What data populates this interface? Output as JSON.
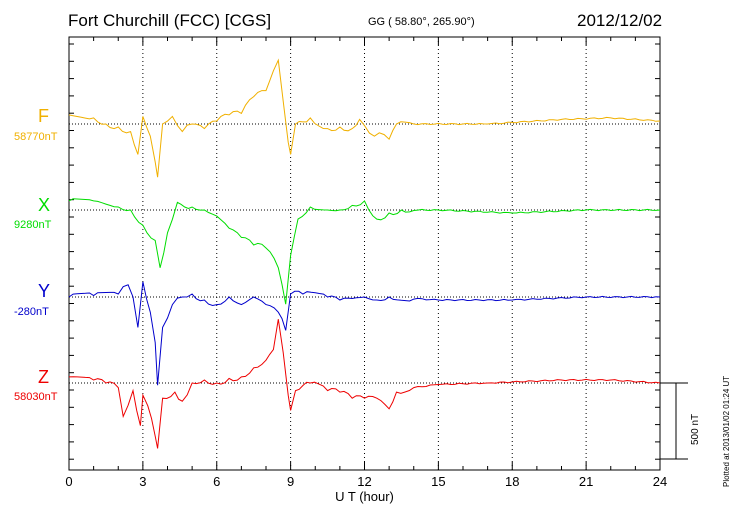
{
  "header": {
    "station": "Fort Churchill (FCC)  [CGS]",
    "coords": "GG ( 58.80°, 265.90°)",
    "date": "2012/12/02"
  },
  "footer_note": "Plotted at 2013/01/02 01:24  UT",
  "chart_data": {
    "type": "line",
    "title": "Fort Churchill (FCC)  [CGS]",
    "xlabel": "U T (hour)",
    "xlim": [
      0,
      24
    ],
    "xticks": [
      0,
      3,
      6,
      9,
      12,
      15,
      18,
      21,
      24
    ],
    "x_tick_labels": [
      "0",
      "3",
      "6",
      "9",
      "12",
      "15",
      "18",
      "21",
      "24"
    ],
    "grid": "vertical dotted every 3 h",
    "scale_bar": {
      "label": "500 nT",
      "value": 500
    },
    "colors": {
      "F": "#f0b000",
      "X": "#00dd00",
      "Y": "#0000cc",
      "Z": "#ee0000"
    },
    "series": [
      {
        "name": "F",
        "baseline_label": "58770nT",
        "baseline": 58770,
        "points": [
          [
            0,
            60
          ],
          [
            1,
            40
          ],
          [
            1.5,
            0
          ],
          [
            2,
            -20
          ],
          [
            2.5,
            -50
          ],
          [
            2.8,
            -200
          ],
          [
            3,
            50
          ],
          [
            3.3,
            -80
          ],
          [
            3.5,
            -250
          ],
          [
            3.6,
            -350
          ],
          [
            3.8,
            0
          ],
          [
            4.2,
            50
          ],
          [
            4.6,
            -50
          ],
          [
            5,
            0
          ],
          [
            5.5,
            -30
          ],
          [
            6,
            20
          ],
          [
            6.5,
            60
          ],
          [
            7,
            70
          ],
          [
            7.5,
            180
          ],
          [
            8,
            220
          ],
          [
            8.3,
            350
          ],
          [
            8.5,
            420
          ],
          [
            8.7,
            150
          ],
          [
            8.9,
            -120
          ],
          [
            9,
            -200
          ],
          [
            9.2,
            0
          ],
          [
            9.8,
            40
          ],
          [
            10.5,
            -30
          ],
          [
            11,
            -20
          ],
          [
            11.5,
            -30
          ],
          [
            11.8,
            30
          ],
          [
            12,
            -10
          ],
          [
            12.4,
            -80
          ],
          [
            12.8,
            -70
          ],
          [
            13,
            -100
          ],
          [
            13.3,
            0
          ],
          [
            14,
            0
          ],
          [
            17,
            0
          ],
          [
            20,
            30
          ],
          [
            22,
            40
          ],
          [
            24,
            20
          ]
        ]
      },
      {
        "name": "X",
        "baseline_label": "9280nT",
        "baseline": 9280,
        "points": [
          [
            0,
            60
          ],
          [
            1,
            60
          ],
          [
            2,
            20
          ],
          [
            2.5,
            0
          ],
          [
            3,
            -100
          ],
          [
            3.5,
            -200
          ],
          [
            3.7,
            -380
          ],
          [
            4,
            -150
          ],
          [
            4.4,
            50
          ],
          [
            5,
            20
          ],
          [
            5.5,
            0
          ],
          [
            6,
            -40
          ],
          [
            6.5,
            -120
          ],
          [
            7,
            -180
          ],
          [
            7.5,
            -230
          ],
          [
            8,
            -250
          ],
          [
            8.5,
            -380
          ],
          [
            8.8,
            -620
          ],
          [
            9,
            -300
          ],
          [
            9.3,
            -60
          ],
          [
            9.8,
            20
          ],
          [
            10.5,
            0
          ],
          [
            11,
            0
          ],
          [
            11.5,
            30
          ],
          [
            12,
            60
          ],
          [
            12.5,
            -60
          ],
          [
            13,
            -20
          ],
          [
            13.5,
            0
          ],
          [
            15,
            0
          ],
          [
            18,
            -20
          ],
          [
            21,
            0
          ],
          [
            24,
            0
          ]
        ]
      },
      {
        "name": "Y",
        "baseline_label": "-280nT",
        "baseline": -280,
        "points": [
          [
            0,
            0
          ],
          [
            1,
            10
          ],
          [
            2,
            20
          ],
          [
            2.4,
            80
          ],
          [
            2.6,
            0
          ],
          [
            2.8,
            -200
          ],
          [
            3,
            100
          ],
          [
            3.3,
            -100
          ],
          [
            3.5,
            -300
          ],
          [
            3.6,
            -580
          ],
          [
            3.8,
            -200
          ],
          [
            4.2,
            -50
          ],
          [
            4.6,
            0
          ],
          [
            5,
            20
          ],
          [
            5.5,
            -20
          ],
          [
            6,
            -50
          ],
          [
            6.5,
            0
          ],
          [
            7,
            -50
          ],
          [
            7.5,
            0
          ],
          [
            8,
            -50
          ],
          [
            8.5,
            -100
          ],
          [
            8.8,
            -220
          ],
          [
            9,
            20
          ],
          [
            9.5,
            20
          ],
          [
            10.5,
            0
          ],
          [
            11,
            -20
          ],
          [
            11.5,
            -10
          ],
          [
            12,
            0
          ],
          [
            12.5,
            -20
          ],
          [
            13,
            0
          ],
          [
            15,
            -20
          ],
          [
            18,
            -20
          ],
          [
            21,
            0
          ],
          [
            24,
            0
          ]
        ]
      },
      {
        "name": "Z",
        "baseline_label": "58030nT",
        "baseline": 58030,
        "points": [
          [
            0,
            40
          ],
          [
            1,
            20
          ],
          [
            1.5,
            0
          ],
          [
            2,
            -30
          ],
          [
            2.2,
            -220
          ],
          [
            2.6,
            -50
          ],
          [
            2.9,
            -280
          ],
          [
            3,
            -80
          ],
          [
            3.2,
            -150
          ],
          [
            3.5,
            -350
          ],
          [
            3.6,
            -430
          ],
          [
            3.8,
            -100
          ],
          [
            4.3,
            -60
          ],
          [
            4.6,
            -120
          ],
          [
            5,
            0
          ],
          [
            5.5,
            20
          ],
          [
            6,
            0
          ],
          [
            6.5,
            30
          ],
          [
            7,
            40
          ],
          [
            7.5,
            100
          ],
          [
            8,
            150
          ],
          [
            8.3,
            220
          ],
          [
            8.5,
            420
          ],
          [
            8.7,
            200
          ],
          [
            8.9,
            -80
          ],
          [
            9,
            -180
          ],
          [
            9.2,
            -50
          ],
          [
            9.8,
            0
          ],
          [
            10.5,
            -50
          ],
          [
            11,
            -60
          ],
          [
            11.5,
            -100
          ],
          [
            12,
            -100
          ],
          [
            12.5,
            -100
          ],
          [
            13,
            -170
          ],
          [
            13.3,
            -60
          ],
          [
            14,
            -30
          ],
          [
            15,
            -10
          ],
          [
            17,
            0
          ],
          [
            20,
            20
          ],
          [
            22,
            20
          ],
          [
            24,
            0
          ]
        ]
      }
    ]
  }
}
